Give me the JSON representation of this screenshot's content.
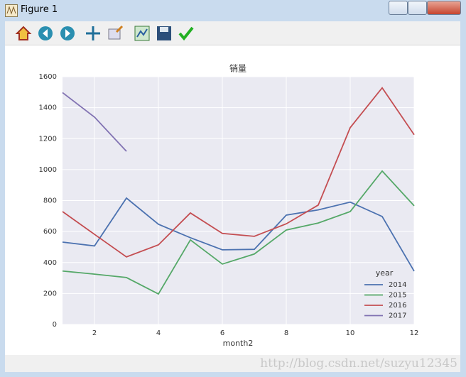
{
  "window": {
    "title": "Figure 1",
    "watermark": "http://blog.csdn.net/suzyu12345"
  },
  "chart_data": {
    "type": "line",
    "title": "销量",
    "x_label": "month2",
    "x": [
      1,
      2,
      3,
      4,
      5,
      6,
      7,
      8,
      9,
      10,
      11,
      12
    ],
    "series": [
      {
        "name": "2014",
        "color": "#4c72b0",
        "values": [
          532,
          507,
          816,
          647,
          560,
          482,
          485,
          706,
          740,
          790,
          697,
          344
        ]
      },
      {
        "name": "2015",
        "color": "#55a868",
        "values": [
          345,
          325,
          303,
          197,
          546,
          390,
          455,
          610,
          655,
          729,
          991,
          766
        ]
      },
      {
        "name": "2016",
        "color": "#c44e52",
        "values": [
          729,
          582,
          436,
          514,
          720,
          588,
          569,
          650,
          771,
          1271,
          1528,
          1225
        ]
      },
      {
        "name": "2017",
        "color": "#8172b2",
        "values": [
          1497,
          1339,
          1118,
          null,
          null,
          null,
          null,
          null,
          null,
          null,
          null,
          null
        ]
      }
    ],
    "xlim": [
      1,
      12
    ],
    "xticks": [
      2,
      4,
      6,
      8,
      10,
      12
    ],
    "ylim": [
      0,
      1600
    ],
    "yticks": [
      0,
      200,
      400,
      600,
      800,
      1000,
      1200,
      1400,
      1600
    ],
    "grid": true,
    "legend_title": "year",
    "legend_position": "lower right"
  }
}
